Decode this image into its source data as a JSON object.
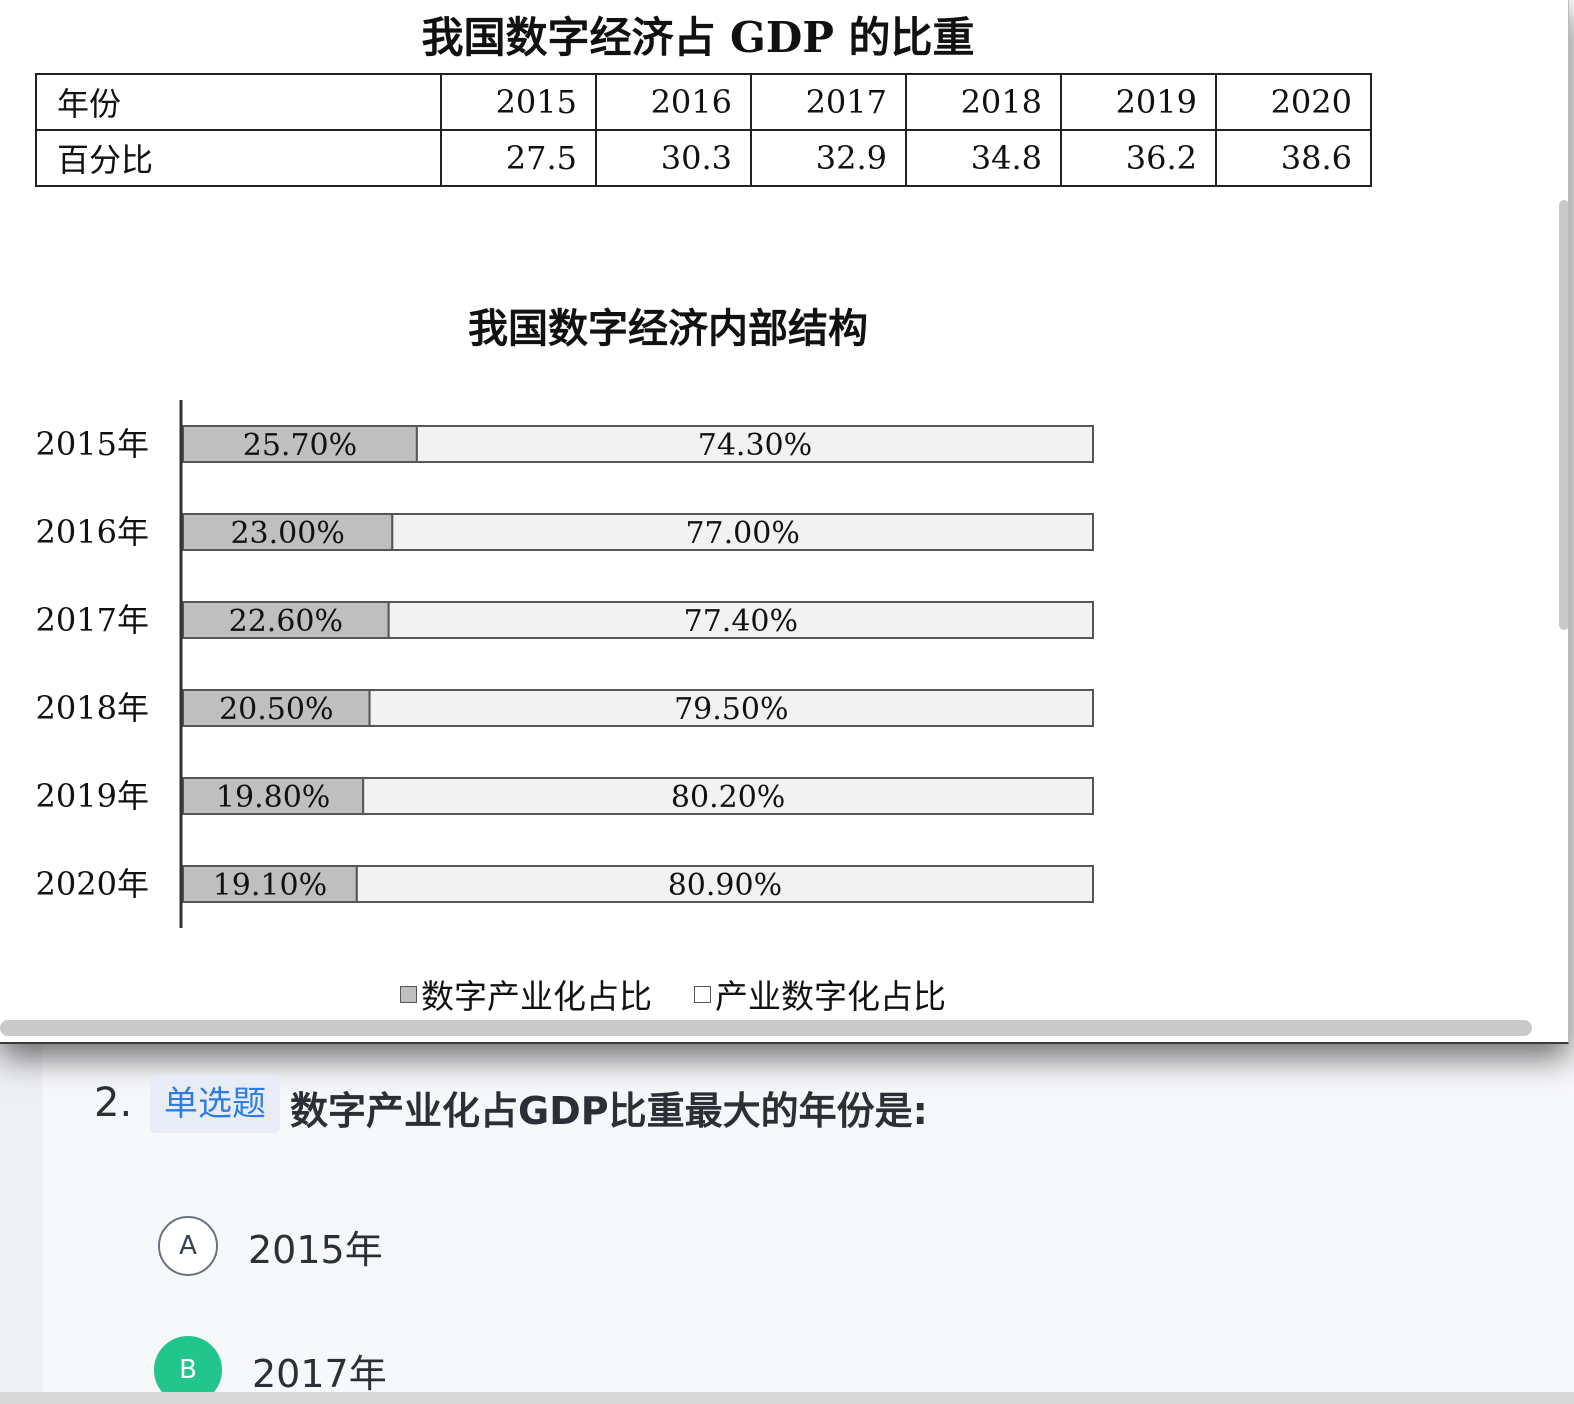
{
  "table": {
    "title": "我国数字经济占 GDP 的比重",
    "row_year_label": "年份",
    "row_pct_label": "百分比",
    "years": [
      "2015",
      "2016",
      "2017",
      "2018",
      "2019",
      "2020"
    ],
    "values": [
      "27.5",
      "30.3",
      "32.9",
      "34.8",
      "36.2",
      "38.6"
    ]
  },
  "chart_data": {
    "type": "bar",
    "orientation": "horizontal",
    "stacked": true,
    "title": "我国数字经济内部结构",
    "categories": [
      "2015年",
      "2016年",
      "2017年",
      "2018年",
      "2019年",
      "2020年"
    ],
    "series": [
      {
        "name": "数字产业化占比",
        "values": [
          25.7,
          23.0,
          22.6,
          20.5,
          19.8,
          19.1
        ],
        "labels": [
          "25.70%",
          "23.00%",
          "22.60%",
          "20.50%",
          "19.80%",
          "19.10%"
        ],
        "color": "#bfbfbf"
      },
      {
        "name": "产业数字化占比",
        "values": [
          74.3,
          77.0,
          77.4,
          79.5,
          80.2,
          80.9
        ],
        "labels": [
          "74.30%",
          "77.00%",
          "77.40%",
          "79.50%",
          "80.20%",
          "80.90%"
        ],
        "color": "#f2f2f2"
      }
    ],
    "xlim": [
      0,
      100
    ],
    "legend_position": "bottom"
  },
  "question": {
    "number": "2.",
    "type_tag": "单选题",
    "text": "数字产业化占GDP比重最大的年份是:",
    "options": [
      {
        "letter": "A",
        "text": "2015年",
        "selected": false
      },
      {
        "letter": "B",
        "text": "2017年",
        "selected": true
      }
    ]
  }
}
